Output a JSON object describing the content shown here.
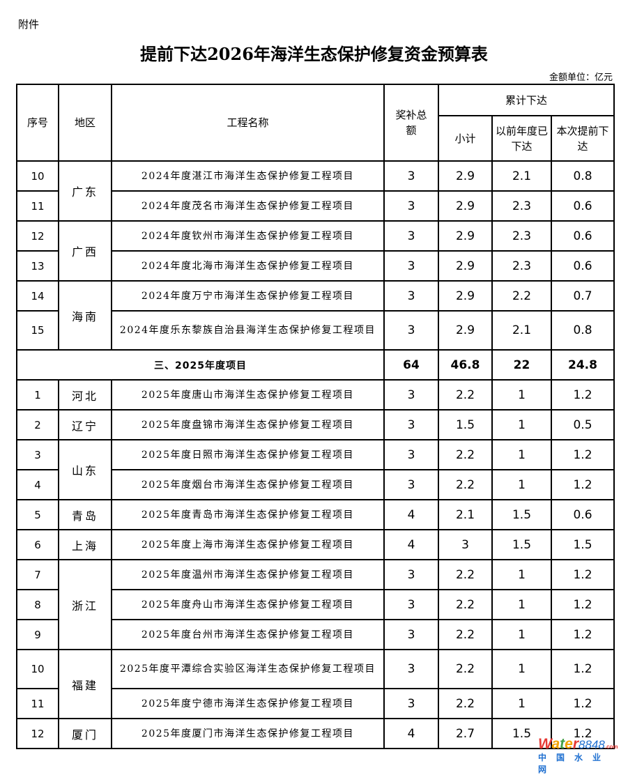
{
  "attachment_label": "附件",
  "title": "提前下达2026年海洋生态保护修复资金预算表",
  "unit": "金额单位：亿元",
  "headers": {
    "seq": "序号",
    "region": "地区",
    "project": "工程名称",
    "total": "奖补总额",
    "cumulative": "累计下达",
    "subtotal": "小计",
    "previous": "以前年度已下达",
    "current": "本次提前下达"
  },
  "groups": [
    {
      "region": "广东",
      "rows": [
        {
          "seq": "10",
          "name": "2024年度湛江市海洋生态保护修复工程项目",
          "total": "3",
          "subtotal": "2.9",
          "previous": "2.1",
          "current": "0.8"
        },
        {
          "seq": "11",
          "name": "2024年度茂名市海洋生态保护修复工程项目",
          "total": "3",
          "subtotal": "2.9",
          "previous": "2.3",
          "current": "0.6"
        }
      ]
    },
    {
      "region": "广西",
      "rows": [
        {
          "seq": "12",
          "name": "2024年度钦州市海洋生态保护修复工程项目",
          "total": "3",
          "subtotal": "2.9",
          "previous": "2.3",
          "current": "0.6"
        },
        {
          "seq": "13",
          "name": "2024年度北海市海洋生态保护修复工程项目",
          "total": "3",
          "subtotal": "2.9",
          "previous": "2.3",
          "current": "0.6"
        }
      ]
    },
    {
      "region": "海南",
      "rows": [
        {
          "seq": "14",
          "name": "2024年度万宁市海洋生态保护修复工程项目",
          "total": "3",
          "subtotal": "2.9",
          "previous": "2.2",
          "current": "0.7"
        },
        {
          "seq": "15",
          "name": "2024年度乐东黎族自治县海洋生态保护修复工程项目",
          "total": "3",
          "subtotal": "2.9",
          "previous": "2.1",
          "current": "0.8",
          "tall": true
        }
      ]
    },
    {
      "section": "三、2025年度项目",
      "total": "64",
      "subtotal": "46.8",
      "previous": "22",
      "current": "24.8"
    },
    {
      "region": "河北",
      "rows": [
        {
          "seq": "1",
          "name": "2025年度唐山市海洋生态保护修复工程项目",
          "total": "3",
          "subtotal": "2.2",
          "previous": "1",
          "current": "1.2"
        }
      ]
    },
    {
      "region": "辽宁",
      "rows": [
        {
          "seq": "2",
          "name": "2025年度盘锦市海洋生态保护修复工程项目",
          "total": "3",
          "subtotal": "1.5",
          "previous": "1",
          "current": "0.5"
        }
      ]
    },
    {
      "region": "山东",
      "rows": [
        {
          "seq": "3",
          "name": "2025年度日照市海洋生态保护修复工程项目",
          "total": "3",
          "subtotal": "2.2",
          "previous": "1",
          "current": "1.2"
        },
        {
          "seq": "4",
          "name": "2025年度烟台市海洋生态保护修复工程项目",
          "total": "3",
          "subtotal": "2.2",
          "previous": "1",
          "current": "1.2"
        }
      ]
    },
    {
      "region": "青岛",
      "rows": [
        {
          "seq": "5",
          "name": "2025年度青岛市海洋生态保护修复工程项目",
          "total": "4",
          "subtotal": "2.1",
          "previous": "1.5",
          "current": "0.6"
        }
      ]
    },
    {
      "region": "上海",
      "rows": [
        {
          "seq": "6",
          "name": "2025年度上海市海洋生态保护修复工程项目",
          "total": "4",
          "subtotal": "3",
          "previous": "1.5",
          "current": "1.5"
        }
      ]
    },
    {
      "region": "浙江",
      "rows": [
        {
          "seq": "7",
          "name": "2025年度温州市海洋生态保护修复工程项目",
          "total": "3",
          "subtotal": "2.2",
          "previous": "1",
          "current": "1.2"
        },
        {
          "seq": "8",
          "name": "2025年度舟山市海洋生态保护修复工程项目",
          "total": "3",
          "subtotal": "2.2",
          "previous": "1",
          "current": "1.2"
        },
        {
          "seq": "9",
          "name": "2025年度台州市海洋生态保护修复工程项目",
          "total": "3",
          "subtotal": "2.2",
          "previous": "1",
          "current": "1.2"
        }
      ]
    },
    {
      "region": "福建",
      "rows": [
        {
          "seq": "10",
          "name": "2025年度平潭综合实验区海洋生态保护修复工程项目",
          "total": "3",
          "subtotal": "2.2",
          "previous": "1",
          "current": "1.2",
          "tall": true
        },
        {
          "seq": "11",
          "name": "2025年度宁德市海洋生态保护修复工程项目",
          "total": "3",
          "subtotal": "2.2",
          "previous": "1",
          "current": "1.2"
        }
      ]
    },
    {
      "region": "厦门",
      "rows": [
        {
          "seq": "12",
          "name": "2025年度厦门市海洋生态保护修复工程项目",
          "total": "4",
          "subtotal": "2.7",
          "previous": "1.5",
          "current": "1.2"
        }
      ]
    }
  ],
  "watermark": {
    "brand": "Water8848",
    "suffix": ".com",
    "cn": "中国水业网"
  }
}
